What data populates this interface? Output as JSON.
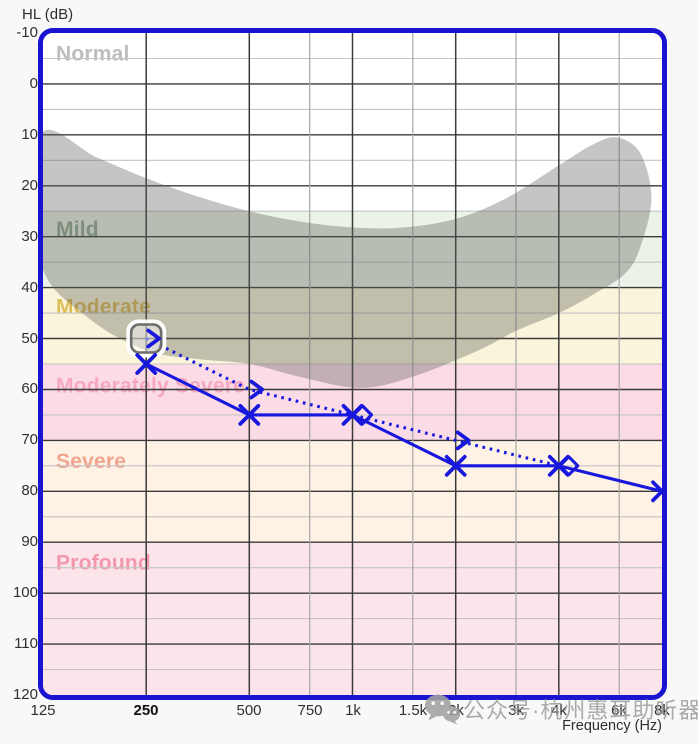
{
  "axes": {
    "y_title": "HL (dB)",
    "x_title": "Frequency (Hz)",
    "y_ticks": [
      "-10",
      "0",
      "10",
      "20",
      "30",
      "40",
      "50",
      "60",
      "70",
      "80",
      "90",
      "100",
      "110",
      "120"
    ],
    "y_range": [
      -10,
      120
    ],
    "x_ticks": [
      {
        "hz": 125,
        "label": "125"
      },
      {
        "hz": 250,
        "label": "250"
      },
      {
        "hz": 500,
        "label": "500"
      },
      {
        "hz": 750,
        "label": "750"
      },
      {
        "hz": 1000,
        "label": "1k"
      },
      {
        "hz": 1500,
        "label": "1.5k"
      },
      {
        "hz": 2000,
        "label": "2k"
      },
      {
        "hz": 3000,
        "label": "3k"
      },
      {
        "hz": 4000,
        "label": "4k"
      },
      {
        "hz": 6000,
        "label": "6k"
      },
      {
        "hz": 8000,
        "label": "8k"
      }
    ],
    "x_range_hz": [
      125,
      8000
    ],
    "selected_freq_label": "250"
  },
  "grid": {
    "major_color": "#3a3a3a",
    "minor_color": "#c4c4c4",
    "major_freqs": [
      250,
      500,
      1000,
      2000,
      4000
    ],
    "minor_freqs": [
      750,
      1500,
      3000,
      6000
    ]
  },
  "bands": [
    {
      "label": "Normal",
      "from": -10,
      "to": 25,
      "color": "#ffffff",
      "label_color": "#bdbdbd",
      "label_db": -6
    },
    {
      "label": "Mild",
      "from": 25,
      "to": 40,
      "color": "#ebf2e7",
      "label_color": "#8fa98e",
      "label_db": 28.5
    },
    {
      "label": "Moderate",
      "from": 40,
      "to": 55,
      "color": "#faf5da",
      "label_color": "#dcbc54",
      "label_db": 43.7
    },
    {
      "label": "Moderately Severe",
      "from": 55,
      "to": 70,
      "color": "#fadbe6",
      "label_color": "#f5a8c0",
      "label_db": 59.2
    },
    {
      "label": "Severe",
      "from": 70,
      "to": 90,
      "color": "#fdf2e4",
      "label_color": "#f2a48f",
      "label_db": 74
    },
    {
      "label": "Profound",
      "from": 90,
      "to": 120,
      "color": "#fce4eb",
      "label_color": "#f397ab",
      "label_db": 94
    }
  ],
  "chart_data": {
    "type": "line",
    "x_unit": "Hz",
    "y_unit": "dB HL",
    "x_scale": "log2",
    "series": [
      {
        "name": "threshold-dotted-chevron",
        "line": "dotted",
        "color": "#1717dd",
        "points": [
          {
            "f": 250,
            "db": 50,
            "marker": "chevron",
            "selected": true
          },
          {
            "f": 500,
            "db": 60,
            "marker": "chevron"
          },
          {
            "f": 1000,
            "db": 65,
            "marker": "diamond"
          },
          {
            "f": 2000,
            "db": 70,
            "marker": "chevron"
          },
          {
            "f": 4000,
            "db": 75,
            "marker": "diamond"
          }
        ]
      },
      {
        "name": "threshold-solid-x",
        "line": "solid",
        "color": "#1717dd",
        "points": [
          {
            "f": 250,
            "db": 55,
            "marker": "x"
          },
          {
            "f": 500,
            "db": 65,
            "marker": "x"
          },
          {
            "f": 1000,
            "db": 65,
            "marker": "x"
          },
          {
            "f": 2000,
            "db": 75,
            "marker": "x"
          },
          {
            "f": 4000,
            "db": 75,
            "marker": "x"
          },
          {
            "f": 8000,
            "db": 80,
            "marker": "x"
          }
        ]
      }
    ],
    "selected_point": {
      "series": "threshold-dotted-chevron",
      "f": 250,
      "db": 50
    },
    "speech_banana": {
      "color": "rgba(95,95,92,0.36)",
      "outline": [
        [
          123,
          10
        ],
        [
          180,
          14.5
        ],
        [
          250,
          18.5
        ],
        [
          350,
          22
        ],
        [
          500,
          25
        ],
        [
          700,
          27
        ],
        [
          1000,
          28.2
        ],
        [
          1400,
          28.2
        ],
        [
          2000,
          26.5
        ],
        [
          2800,
          22.5
        ],
        [
          4000,
          16
        ],
        [
          5000,
          12
        ],
        [
          5900,
          10.5
        ],
        [
          6900,
          13.5
        ],
        [
          7450,
          22
        ],
        [
          7000,
          31
        ],
        [
          6300,
          37
        ],
        [
          5000,
          41.5
        ],
        [
          4000,
          45
        ],
        [
          3000,
          48.5
        ],
        [
          2300,
          52.5
        ],
        [
          1500,
          57.5
        ],
        [
          1050,
          59.7
        ],
        [
          700,
          57.5
        ],
        [
          500,
          55
        ],
        [
          350,
          54
        ],
        [
          250,
          52.3
        ],
        [
          170,
          46
        ],
        [
          123,
          35
        ]
      ]
    }
  },
  "watermark": {
    "icon": "wechat-icon",
    "text": "公众号·杭州惠耳助听器"
  },
  "frame": {
    "border_color": "#1a13cf"
  }
}
